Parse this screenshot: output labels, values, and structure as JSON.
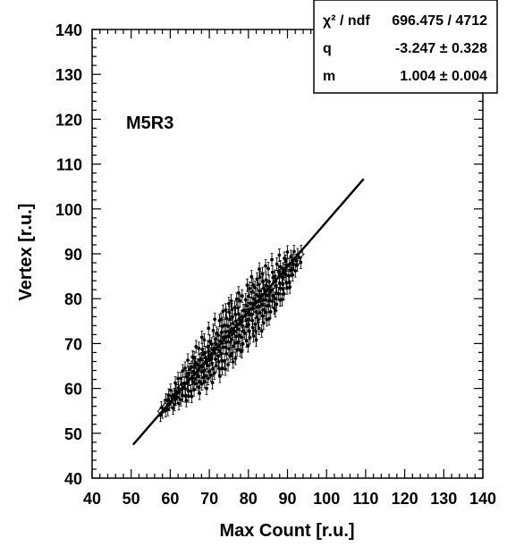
{
  "chart_data": {
    "type": "scatter",
    "xlabel": "Max Count [r.u.]",
    "ylabel": "Vertex [r.u.]",
    "xlim": [
      40,
      140
    ],
    "ylim": [
      40,
      140
    ],
    "x_ticks": [
      40,
      50,
      60,
      70,
      80,
      90,
      100,
      110,
      120,
      130,
      140
    ],
    "y_ticks": [
      40,
      50,
      60,
      70,
      80,
      90,
      100,
      110,
      120,
      130,
      140
    ],
    "grid": false,
    "annotation": "M5R3",
    "stats_box": {
      "rows": [
        {
          "label": "χ² / ndf",
          "value": "696.475 / 4712"
        },
        {
          "label": "q",
          "value": "-3.247 ± 0.328"
        },
        {
          "label": "m",
          "value": "1.004 ± 0.004"
        }
      ]
    },
    "fit_line": {
      "q": -3.247,
      "m": 1.004,
      "x_range": [
        50.5,
        109.5
      ]
    },
    "series": [
      {
        "marker": "filled-circle-with-error-bars",
        "x": [
          57.8,
          58.6,
          59.5,
          60.4,
          61.3,
          62.1,
          63.0,
          63.9,
          64.7,
          65.6,
          66.4,
          67.3,
          68.2,
          69.0,
          69.9,
          70.7,
          71.6,
          72.5,
          73.3,
          74.2,
          75.1,
          75.9,
          76.8,
          77.6,
          78.5,
          79.4,
          80.2,
          81.1,
          82.0,
          82.8,
          83.7,
          84.5,
          85.4,
          86.3,
          87.1,
          88.0,
          88.9,
          89.7,
          90.6,
          91.4,
          92.3,
          93.2
        ],
        "y": [
          54.8,
          56.2,
          56.9,
          57.6,
          58.8,
          59.4,
          60.7,
          60.9,
          62.3,
          62.6,
          64.5,
          63.9,
          66.2,
          65.4,
          67.8,
          67.1,
          69.4,
          68.9,
          70.8,
          70.9,
          72.1,
          72.7,
          73.3,
          74.9,
          74.4,
          76.8,
          75.9,
          78.3,
          77.6,
          80.0,
          79.2,
          81.3,
          81.1,
          83.3,
          82.5,
          84.7,
          84.4,
          86.4,
          86.0,
          87.9,
          88.0,
          89.3
        ],
        "spread": [
          0.8,
          1.2,
          1.6,
          2.0,
          2.4,
          2.8,
          3.2,
          3.6,
          4.0,
          4.4,
          4.8,
          5.0,
          5.2,
          5.4,
          5.6,
          5.8,
          6.0,
          6.2,
          6.4,
          6.6,
          6.8,
          6.8,
          6.6,
          6.4,
          6.2,
          6.2,
          6.4,
          6.6,
          6.8,
          6.6,
          6.4,
          6.0,
          5.6,
          5.4,
          5.2,
          5.0,
          4.6,
          4.0,
          3.4,
          2.6,
          1.8,
          1.2
        ],
        "error": 1.4
      },
      {
        "marker": "open-diamond",
        "x": [
          57.6,
          58.8,
          93.4
        ],
        "y": [
          54.9,
          56.0,
          89.9
        ]
      }
    ]
  }
}
